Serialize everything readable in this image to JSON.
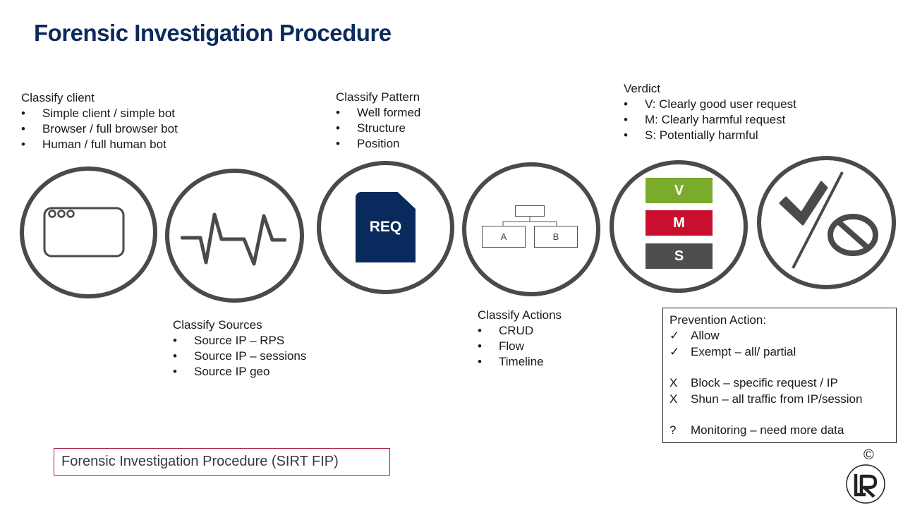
{
  "title": "Forensic Investigation Procedure",
  "classify_client": {
    "heading": "Classify client",
    "items": [
      "Simple client / simple bot",
      "Browser / full browser bot",
      "Human / full human bot"
    ]
  },
  "classify_sources": {
    "heading": "Classify Sources",
    "items": [
      "Source IP – RPS",
      "Source IP – sessions",
      "Source IP geo"
    ]
  },
  "classify_pattern": {
    "heading": "Classify Pattern",
    "items": [
      "Well formed",
      "Structure",
      "Position"
    ]
  },
  "classify_actions": {
    "heading": "Classify Actions",
    "items": [
      "CRUD",
      "Flow",
      "Timeline"
    ]
  },
  "verdict": {
    "heading": "Verdict",
    "items": [
      "V:  Clearly good user request",
      "M: Clearly harmful request",
      "S: Potentially harmful"
    ],
    "bars": [
      {
        "label": "V",
        "color": "#7aab2c"
      },
      {
        "label": "M",
        "color": "#c8102e"
      },
      {
        "label": "S",
        "color": "#4d4e50"
      }
    ]
  },
  "bullet": "•",
  "req_label": "REQ",
  "tree": {
    "left": "A",
    "right": "B"
  },
  "prevention": {
    "heading": "Prevention Action:",
    "rows": [
      {
        "mark": "✓",
        "text": "Allow"
      },
      {
        "mark": "✓",
        "text": "Exempt – all/ partial"
      },
      {
        "mark": "X",
        "text": "Block – specific request / IP"
      },
      {
        "mark": "X",
        "text": "Shun – all traffic from IP/session"
      },
      {
        "mark": "?",
        "text": "Monitoring – need more data"
      }
    ]
  },
  "footer": "Forensic Investigation Procedure (SIRT FIP)",
  "copyright": "©",
  "colors": {
    "title": "#0d2a5c",
    "circle_stroke": "#4a4a4a",
    "req_fill": "#0a2a5e",
    "footer_border": "#a81c3a"
  },
  "icons": [
    "browser-window-icon",
    "pulse-waveform-icon",
    "request-document-icon",
    "hierarchy-tree-icon",
    "verdict-bars-icon",
    "allow-deny-icon",
    "company-logo-icon"
  ]
}
